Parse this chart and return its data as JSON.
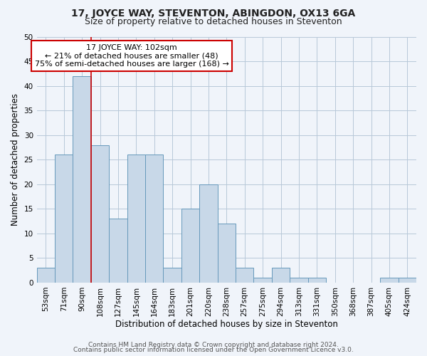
{
  "title": "17, JOYCE WAY, STEVENTON, ABINGDON, OX13 6GA",
  "subtitle": "Size of property relative to detached houses in Steventon",
  "xlabel": "Distribution of detached houses by size in Steventon",
  "ylabel": "Number of detached properties",
  "bin_labels": [
    "53sqm",
    "71sqm",
    "90sqm",
    "108sqm",
    "127sqm",
    "145sqm",
    "164sqm",
    "183sqm",
    "201sqm",
    "220sqm",
    "238sqm",
    "257sqm",
    "275sqm",
    "294sqm",
    "313sqm",
    "331sqm",
    "350sqm",
    "368sqm",
    "387sqm",
    "405sqm",
    "424sqm"
  ],
  "bar_heights": [
    3,
    26,
    42,
    28,
    13,
    26,
    26,
    3,
    15,
    20,
    12,
    3,
    1,
    3,
    1,
    1,
    0,
    0,
    0,
    1,
    1
  ],
  "bar_color": "#c8d8e8",
  "bar_edge_color": "#6699bb",
  "ylim": [
    0,
    50
  ],
  "yticks": [
    0,
    5,
    10,
    15,
    20,
    25,
    30,
    35,
    40,
    45,
    50
  ],
  "marker_color": "#cc0000",
  "annotation_title": "17 JOYCE WAY: 102sqm",
  "annotation_line1": "← 21% of detached houses are smaller (48)",
  "annotation_line2": "75% of semi-detached houses are larger (168) →",
  "annotation_box_color": "#ffffff",
  "annotation_box_edge": "#cc0000",
  "footer_line1": "Contains HM Land Registry data © Crown copyright and database right 2024.",
  "footer_line2": "Contains public sector information licensed under the Open Government Licence v3.0.",
  "background_color": "#f0f4fa",
  "grid_color": "#b8c8d8",
  "title_fontsize": 10,
  "subtitle_fontsize": 9,
  "axis_label_fontsize": 8.5,
  "tick_fontsize": 7.5,
  "footer_fontsize": 6.5
}
